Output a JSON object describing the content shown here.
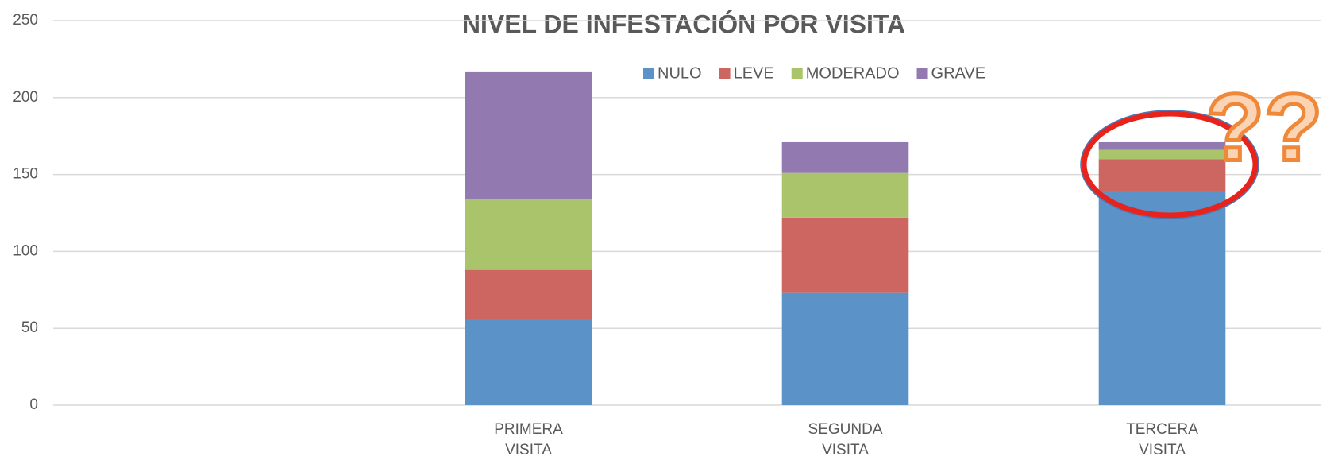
{
  "chart_data": {
    "type": "stacked_bar",
    "title": "NIVEL DE INFESTACIÓN POR VISITA",
    "categories": [
      null,
      "PRIMERA VISITA",
      "SEGUNDA VISITA",
      "TERCERA VISITA"
    ],
    "series": [
      {
        "name": "NULO",
        "color": "#5b93c9",
        "values": [
          null,
          56,
          73,
          139
        ]
      },
      {
        "name": "LEVE",
        "color": "#cd6660",
        "values": [
          null,
          32,
          49,
          21
        ]
      },
      {
        "name": "MODERADO",
        "color": "#a9c46b",
        "values": [
          null,
          46,
          29,
          6
        ]
      },
      {
        "name": "GRAVE",
        "color": "#927ab1",
        "values": [
          null,
          83,
          20,
          5
        ]
      }
    ],
    "ylim": [
      0,
      250
    ],
    "yticks": [
      0,
      50,
      100,
      150,
      200,
      250
    ],
    "grid": true,
    "legend": "top",
    "annotation": "??"
  }
}
